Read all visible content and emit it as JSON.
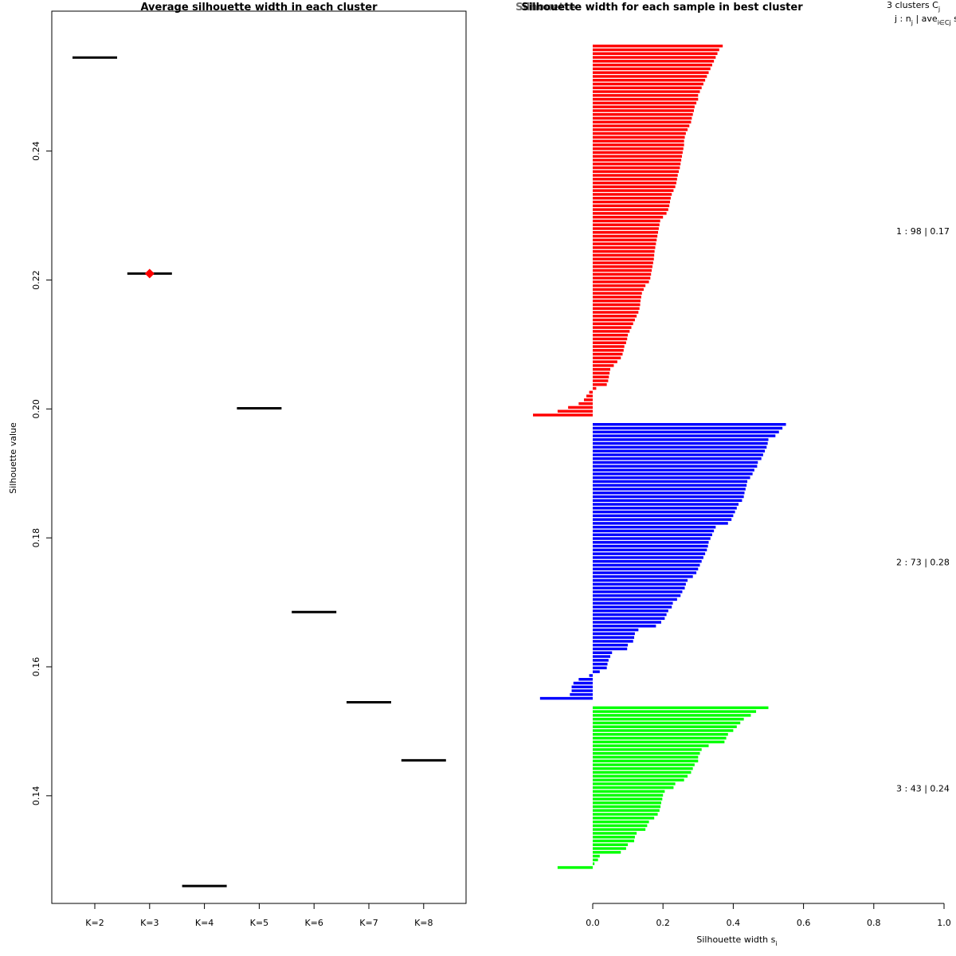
{
  "chart_data": [
    {
      "type": "scatter",
      "title": "Average silhouette width in each cluster",
      "xlabel": "",
      "ylabel": "Silhouette value",
      "ylim": [
        0.1233,
        0.2617
      ],
      "yticks": [
        "0.14",
        "0.16",
        "0.18",
        "0.20",
        "0.22",
        "0.24"
      ],
      "ytick_values": [
        0.14,
        0.16,
        0.18,
        0.2,
        0.22,
        0.24
      ],
      "categories": [
        "K=2",
        "K=3",
        "K=4",
        "K=5",
        "K=6",
        "K=7",
        "K=8"
      ],
      "values": [
        0.2545,
        0.221,
        0.126,
        0.2001,
        0.1685,
        0.1545,
        0.1455
      ],
      "best": "K=3",
      "best_color": "#ff0000",
      "line_color": "#000000"
    },
    {
      "type": "bar",
      "orientation": "horizontal",
      "title": "Silhouette width for each sample in best cluster",
      "overlap_title": "Silhouette",
      "xlabel": "Silhouette width s",
      "xlabel_sub": "i",
      "xlim": [
        -0.18,
        1.0
      ],
      "xticks": [
        "0.0",
        "0.2",
        "0.4",
        "0.6",
        "0.8",
        "1.0"
      ],
      "xtick_values": [
        0.0,
        0.2,
        0.4,
        0.6,
        0.8,
        1.0
      ],
      "legend_header": {
        "line1": "3  clusters  C",
        "line1_sub": "j",
        "line2": "j :  n",
        "line2_sub": "j",
        "line2_rest": "  |  ave",
        "line2_sub2": "i∈Cj",
        "line2_end": "  s"
      },
      "clusters": [
        {
          "id": 1,
          "n": 98,
          "avg": "0.17",
          "label": "1 :  98  |  0.17",
          "color": "#ff0000",
          "values": [
            0.37,
            0.36,
            0.355,
            0.35,
            0.345,
            0.34,
            0.335,
            0.33,
            0.325,
            0.32,
            0.315,
            0.31,
            0.305,
            0.3,
            0.3,
            0.295,
            0.29,
            0.288,
            0.285,
            0.282,
            0.28,
            0.275,
            0.27,
            0.265,
            0.262,
            0.26,
            0.26,
            0.258,
            0.256,
            0.254,
            0.252,
            0.25,
            0.248,
            0.245,
            0.242,
            0.24,
            0.238,
            0.235,
            0.23,
            0.225,
            0.222,
            0.22,
            0.218,
            0.215,
            0.21,
            0.2,
            0.192,
            0.19,
            0.188,
            0.186,
            0.184,
            0.182,
            0.18,
            0.178,
            0.176,
            0.175,
            0.174,
            0.172,
            0.17,
            0.168,
            0.166,
            0.164,
            0.16,
            0.15,
            0.145,
            0.14,
            0.138,
            0.136,
            0.135,
            0.133,
            0.13,
            0.125,
            0.12,
            0.115,
            0.11,
            0.105,
            0.1,
            0.098,
            0.095,
            0.09,
            0.088,
            0.085,
            0.08,
            0.07,
            0.06,
            0.05,
            0.048,
            0.046,
            0.044,
            0.04,
            0.01,
            -0.01,
            -0.018,
            -0.025,
            -0.04,
            -0.07,
            -0.1,
            -0.17
          ]
        },
        {
          "id": 2,
          "n": 73,
          "avg": "0.28",
          "label": "2 :  73  |  0.28",
          "color": "#0000ff",
          "values": [
            0.55,
            0.54,
            0.53,
            0.52,
            0.5,
            0.498,
            0.495,
            0.49,
            0.485,
            0.48,
            0.47,
            0.468,
            0.46,
            0.455,
            0.448,
            0.44,
            0.438,
            0.435,
            0.432,
            0.43,
            0.425,
            0.415,
            0.41,
            0.405,
            0.4,
            0.395,
            0.385,
            0.35,
            0.345,
            0.34,
            0.335,
            0.33,
            0.328,
            0.325,
            0.32,
            0.315,
            0.31,
            0.305,
            0.3,
            0.295,
            0.285,
            0.27,
            0.265,
            0.262,
            0.255,
            0.25,
            0.24,
            0.228,
            0.225,
            0.215,
            0.21,
            0.205,
            0.195,
            0.18,
            0.13,
            0.12,
            0.118,
            0.115,
            0.1,
            0.098,
            0.055,
            0.05,
            0.045,
            0.042,
            0.04,
            0.02,
            -0.01,
            -0.04,
            -0.055,
            -0.06,
            -0.06,
            -0.065,
            -0.15
          ]
        },
        {
          "id": 3,
          "n": 43,
          "avg": "0.24",
          "label": "3 :  43  |  0.24",
          "color": "#00ff00",
          "values": [
            0.5,
            0.465,
            0.45,
            0.43,
            0.42,
            0.41,
            0.4,
            0.385,
            0.38,
            0.375,
            0.33,
            0.31,
            0.305,
            0.3,
            0.3,
            0.29,
            0.285,
            0.28,
            0.27,
            0.26,
            0.235,
            0.23,
            0.205,
            0.2,
            0.198,
            0.195,
            0.193,
            0.19,
            0.185,
            0.175,
            0.16,
            0.155,
            0.15,
            0.125,
            0.12,
            0.118,
            0.1,
            0.095,
            0.08,
            0.02,
            0.015,
            0.005,
            -0.1
          ]
        }
      ]
    }
  ]
}
